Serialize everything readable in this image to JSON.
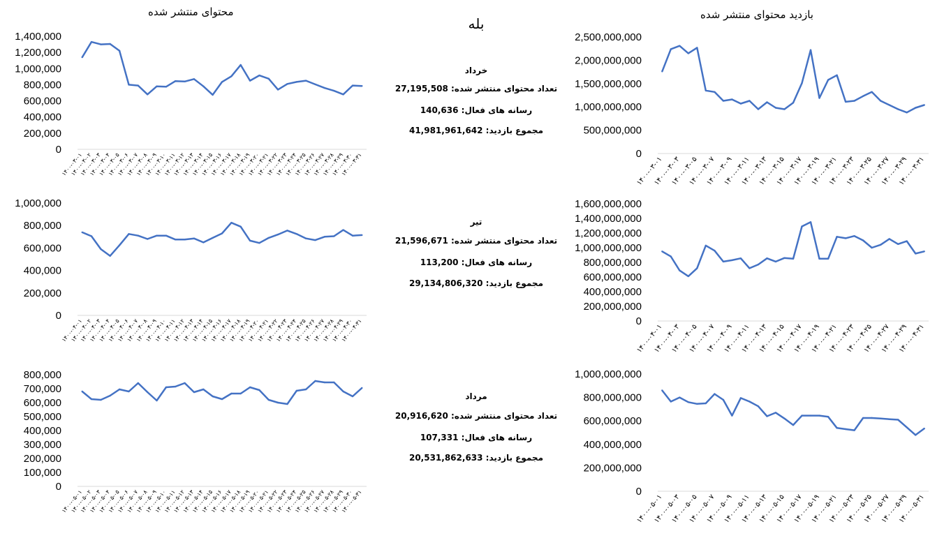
{
  "center": {
    "title": "بله",
    "months": [
      {
        "name": "خرداد",
        "published_label": "تعداد محتوای منتشر شده: 27,195,508",
        "active_label": "رسانه های فعال: 140,636",
        "views_label": "مجموع بازدید: 41,981,961,642"
      },
      {
        "name": "تیر",
        "published_label": "تعداد محتوای منتشر شده: 21,596,671",
        "active_label": "رسانه های فعال: 113,200",
        "views_label": "مجموع بازدید: 29,134,806,320"
      },
      {
        "name": "مرداد",
        "published_label": "تعداد محتوای منتشر شده: 20,916,620",
        "active_label": "رسانه های فعال: 107,331",
        "views_label": "مجموع بازدید: 20,531,862,633"
      }
    ]
  },
  "headers": {
    "left": "محتوای منتشر شده",
    "right": "بازدید محتوای منتشر شده"
  },
  "colors": {
    "line": "#4472C4",
    "text": "#000000",
    "axis": "#d9d9d9"
  },
  "chart_data": [
    {
      "type": "line",
      "title": "محتوای منتشر شده",
      "ylim": [
        0,
        1400000
      ],
      "yticks": [
        "0",
        "200,000",
        "400,000",
        "600,000",
        "800,000",
        "1,000,000",
        "1,200,000",
        "1,400,000"
      ],
      "x": [
        "۱۴۰۰-۰۳-۰۱",
        "۱۴۰۰-۰۳-۰۲",
        "۱۴۰۰-۰۳-۰۳",
        "۱۴۰۰-۰۳-۰۴",
        "۱۴۰۰-۰۳-۰۵",
        "۱۴۰۰-۰۳-۰۶",
        "۱۴۰۰-۰۳-۰۷",
        "۱۴۰۰-۰۳-۰۸",
        "۱۴۰۰-۰۳-۰۹",
        "۱۴۰۰-۰۳-۱۰",
        "۱۴۰۰-۰۳-۱۱",
        "۱۴۰۰-۰۳-۱۲",
        "۱۴۰۰-۰۳-۱۳",
        "۱۴۰۰-۰۳-۱۴",
        "۱۴۰۰-۰۳-۱۵",
        "۱۴۰۰-۰۳-۱۶",
        "۱۴۰۰-۰۳-۱۷",
        "۱۴۰۰-۰۳-۱۸",
        "۱۴۰۰-۰۳-۱۹",
        "۱۴۰۰-۰۳-۲۰",
        "۱۴۰۰-۰۳-۲۱",
        "۱۴۰۰-۰۳-۲۲",
        "۱۴۰۰-۰۳-۲۳",
        "۱۴۰۰-۰۳-۲۴",
        "۱۴۰۰-۰۳-۲۵",
        "۱۴۰۰-۰۳-۲۶",
        "۱۴۰۰-۰۳-۲۷",
        "۱۴۰۰-۰۳-۲۸",
        "۱۴۰۰-۰۳-۲۹",
        "۱۴۰۰-۰۳-۳۰",
        "۱۴۰۰-۰۳-۳۱"
      ],
      "values": [
        1140000,
        1330000,
        1300000,
        1305000,
        1220000,
        800000,
        790000,
        680000,
        780000,
        775000,
        845000,
        840000,
        870000,
        780000,
        675000,
        835000,
        905000,
        1045000,
        850000,
        915000,
        875000,
        740000,
        810000,
        835000,
        850000,
        805000,
        760000,
        725000,
        680000,
        790000,
        785000
      ]
    },
    {
      "type": "line",
      "title": "بازدید محتوای منتشر شده",
      "ylim": [
        0,
        2500000000
      ],
      "yticks": [
        "0",
        "500,000,000",
        "1,000,000,000",
        "1,500,000,000",
        "2,000,000,000",
        "2,500,000,000"
      ],
      "x": [
        "۱۴۰۰-۰۳-۰۱",
        "۱۴۰۰-۰۳-۰۲",
        "۱۴۰۰-۰۳-۰۳",
        "۱۴۰۰-۰۳-۰۴",
        "۱۴۰۰-۰۳-۰۵",
        "۱۴۰۰-۰۳-۰۶",
        "۱۴۰۰-۰۳-۰۷",
        "۱۴۰۰-۰۳-۰۸",
        "۱۴۰۰-۰۳-۰۹",
        "۱۴۰۰-۰۳-۱۰",
        "۱۴۰۰-۰۳-۱۱",
        "۱۴۰۰-۰۳-۱۲",
        "۱۴۰۰-۰۳-۱۳",
        "۱۴۰۰-۰۳-۱۴",
        "۱۴۰۰-۰۳-۱۵",
        "۱۴۰۰-۰۳-۱۶",
        "۱۴۰۰-۰۳-۱۷",
        "۱۴۰۰-۰۳-۱۸",
        "۱۴۰۰-۰۳-۱۹",
        "۱۴۰۰-۰۳-۲۰",
        "۱۴۰۰-۰۳-۲۱",
        "۱۴۰۰-۰۳-۲۲",
        "۱۴۰۰-۰۳-۲۳",
        "۱۴۰۰-۰۳-۲۴",
        "۱۴۰۰-۰۳-۲۵",
        "۱۴۰۰-۰۳-۲۶",
        "۱۴۰۰-۰۳-۲۷",
        "۱۴۰۰-۰۳-۲۸",
        "۱۴۰۰-۰۳-۲۹",
        "۱۴۰۰-۰۳-۳۰",
        "۱۴۰۰-۰۳-۳۱"
      ],
      "xticks": [
        "۱۴۰۰-۰۳-۰۱",
        "۱۴۰۰-۰۳-۰۳",
        "۱۴۰۰-۰۳-۰۵",
        "۱۴۰۰-۰۳-۰۷",
        "۱۴۰۰-۰۳-۰۹",
        "۱۴۰۰-۰۳-۱۱",
        "۱۴۰۰-۰۳-۱۳",
        "۱۴۰۰-۰۳-۱۵",
        "۱۴۰۰-۰۳-۱۷",
        "۱۴۰۰-۰۳-۱۹",
        "۱۴۰۰-۰۳-۲۱",
        "۱۴۰۰-۰۳-۲۳",
        "۱۴۰۰-۰۳-۲۵",
        "۱۴۰۰-۰۳-۲۷",
        "۱۴۰۰-۰۳-۲۹",
        "۱۴۰۰-۰۳-۳۱"
      ],
      "values": [
        1760000000,
        2240000000,
        2310000000,
        2150000000,
        2270000000,
        1350000000,
        1320000000,
        1130000000,
        1160000000,
        1070000000,
        1130000000,
        950000000,
        1100000000,
        980000000,
        950000000,
        1090000000,
        1510000000,
        2220000000,
        1190000000,
        1580000000,
        1680000000,
        1110000000,
        1130000000,
        1230000000,
        1320000000,
        1130000000,
        1040000000,
        950000000,
        880000000,
        980000000,
        1040000000
      ]
    },
    {
      "type": "line",
      "ylim": [
        0,
        1000000
      ],
      "yticks": [
        "0",
        "200,000",
        "400,000",
        "600,000",
        "800,000",
        "1,000,000"
      ],
      "x": [
        "۱۴۰۰-۰۴-۰۱",
        "۱۴۰۰-۰۴-۰۲",
        "۱۴۰۰-۰۴-۰۳",
        "۱۴۰۰-۰۴-۰۴",
        "۱۴۰۰-۰۴-۰۵",
        "۱۴۰۰-۰۴-۰۶",
        "۱۴۰۰-۰۴-۰۷",
        "۱۴۰۰-۰۴-۰۸",
        "۱۴۰۰-۰۴-۰۹",
        "۱۴۰۰-۰۴-۱۰",
        "۱۴۰۰-۰۴-۱۱",
        "۱۴۰۰-۰۴-۱۲",
        "۱۴۰۰-۰۴-۱۳",
        "۱۴۰۰-۰۴-۱۴",
        "۱۴۰۰-۰۴-۱۵",
        "۱۴۰۰-۰۴-۱۶",
        "۱۴۰۰-۰۴-۱۷",
        "۱۴۰۰-۰۴-۱۸",
        "۱۴۰۰-۰۴-۱۹",
        "۱۴۰۰-۰۴-۲۰",
        "۱۴۰۰-۰۴-۲۱",
        "۱۴۰۰-۰۴-۲۲",
        "۱۴۰۰-۰۴-۲۳",
        "۱۴۰۰-۰۴-۲۴",
        "۱۴۰۰-۰۴-۲۵",
        "۱۴۰۰-۰۴-۲۶",
        "۱۴۰۰-۰۴-۲۷",
        "۱۴۰۰-۰۴-۲۸",
        "۱۴۰۰-۰۴-۲۹",
        "۱۴۰۰-۰۴-۳۰",
        "۱۴۰۰-۰۴-۳۱"
      ],
      "values": [
        740000,
        705000,
        590000,
        530000,
        625000,
        725000,
        710000,
        680000,
        710000,
        710000,
        675000,
        675000,
        685000,
        650000,
        690000,
        730000,
        825000,
        790000,
        665000,
        645000,
        690000,
        720000,
        755000,
        725000,
        685000,
        670000,
        700000,
        705000,
        760000,
        710000,
        715000
      ]
    },
    {
      "type": "line",
      "ylim": [
        0,
        1600000000
      ],
      "yticks": [
        "0",
        "200,000,000",
        "400,000,000",
        "600,000,000",
        "800,000,000",
        "1,000,000,000",
        "1,200,000,000",
        "1,400,000,000",
        "1,600,000,000"
      ],
      "x": [
        "۱۴۰۰-۰۴-۰۱",
        "۱۴۰۰-۰۴-۰۲",
        "۱۴۰۰-۰۴-۰۳",
        "۱۴۰۰-۰۴-۰۴",
        "۱۴۰۰-۰۴-۰۵",
        "۱۴۰۰-۰۴-۰۶",
        "۱۴۰۰-۰۴-۰۷",
        "۱۴۰۰-۰۴-۰۸",
        "۱۴۰۰-۰۴-۰۹",
        "۱۴۰۰-۰۴-۱۰",
        "۱۴۰۰-۰۴-۱۱",
        "۱۴۰۰-۰۴-۱۲",
        "۱۴۰۰-۰۴-۱۳",
        "۱۴۰۰-۰۴-۱۴",
        "۱۴۰۰-۰۴-۱۵",
        "۱۴۰۰-۰۴-۱۶",
        "۱۴۰۰-۰۴-۱۷",
        "۱۴۰۰-۰۴-۱۸",
        "۱۴۰۰-۰۴-۱۹",
        "۱۴۰۰-۰۴-۲۰",
        "۱۴۰۰-۰۴-۲۱",
        "۱۴۰۰-۰۴-۲۲",
        "۱۴۰۰-۰۴-۲۳",
        "۱۴۰۰-۰۴-۲۴",
        "۱۴۰۰-۰۴-۲۵",
        "۱۴۰۰-۰۴-۲۶",
        "۱۴۰۰-۰۴-۲۷",
        "۱۴۰۰-۰۴-۲۸",
        "۱۴۰۰-۰۴-۲۹",
        "۱۴۰۰-۰۴-۳۰",
        "۱۴۰۰-۰۴-۳۱"
      ],
      "xticks": [
        "۱۴۰۰-۰۴-۰۱",
        "۱۴۰۰-۰۴-۰۳",
        "۱۴۰۰-۰۴-۰۵",
        "۱۴۰۰-۰۴-۰۷",
        "۱۴۰۰-۰۴-۰۹",
        "۱۴۰۰-۰۴-۱۱",
        "۱۴۰۰-۰۴-۱۳",
        "۱۴۰۰-۰۴-۱۵",
        "۱۴۰۰-۰۴-۱۷",
        "۱۴۰۰-۰۴-۱۹",
        "۱۴۰۰-۰۴-۲۱",
        "۱۴۰۰-۰۴-۲۳",
        "۱۴۰۰-۰۴-۲۵",
        "۱۴۰۰-۰۴-۲۷",
        "۱۴۰۰-۰۴-۲۹",
        "۱۴۰۰-۰۴-۳۱"
      ],
      "values": [
        950000000,
        880000000,
        690000000,
        610000000,
        720000000,
        1030000000,
        960000000,
        810000000,
        830000000,
        855000000,
        720000000,
        770000000,
        855000000,
        810000000,
        860000000,
        850000000,
        1290000000,
        1350000000,
        850000000,
        850000000,
        1150000000,
        1130000000,
        1160000000,
        1100000000,
        1000000000,
        1040000000,
        1120000000,
        1050000000,
        1090000000,
        920000000,
        950000000
      ]
    },
    {
      "type": "line",
      "ylim": [
        0,
        800000
      ],
      "yticks": [
        "0",
        "100,000",
        "200,000",
        "300,000",
        "400,000",
        "500,000",
        "600,000",
        "700,000",
        "800,000"
      ],
      "x": [
        "۱۴۰۰-۰۵-۰۱",
        "۱۴۰۰-۰۵-۰۲",
        "۱۴۰۰-۰۵-۰۳",
        "۱۴۰۰-۰۵-۰۴",
        "۱۴۰۰-۰۵-۰۵",
        "۱۴۰۰-۰۵-۰۶",
        "۱۴۰۰-۰۵-۰۷",
        "۱۴۰۰-۰۵-۰۸",
        "۱۴۰۰-۰۵-۰۹",
        "۱۴۰۰-۰۵-۱۰",
        "۱۴۰۰-۰۵-۱۱",
        "۱۴۰۰-۰۵-۱۲",
        "۱۴۰۰-۰۵-۱۳",
        "۱۴۰۰-۰۵-۱۴",
        "۱۴۰۰-۰۵-۱۵",
        "۱۴۰۰-۰۵-۱۶",
        "۱۴۰۰-۰۵-۱۷",
        "۱۴۰۰-۰۵-۱۸",
        "۱۴۰۰-۰۵-۱۹",
        "۱۴۰۰-۰۵-۲۰",
        "۱۴۰۰-۰۵-۲۱",
        "۱۴۰۰-۰۵-۲۲",
        "۱۴۰۰-۰۵-۲۳",
        "۱۴۰۰-۰۵-۲۴",
        "۱۴۰۰-۰۵-۲۵",
        "۱۴۰۰-۰۵-۲۶",
        "۱۴۰۰-۰۵-۲۷",
        "۱۴۰۰-۰۵-۲۸",
        "۱۴۰۰-۰۵-۲۹",
        "۱۴۰۰-۰۵-۳۰",
        "۱۴۰۰-۰۵-۳۱"
      ],
      "values": [
        680000,
        625000,
        620000,
        650000,
        695000,
        680000,
        740000,
        675000,
        615000,
        710000,
        715000,
        740000,
        675000,
        695000,
        645000,
        625000,
        665000,
        665000,
        710000,
        690000,
        620000,
        600000,
        590000,
        685000,
        695000,
        755000,
        745000,
        745000,
        680000,
        645000,
        705000
      ]
    },
    {
      "type": "line",
      "ylim": [
        0,
        1000000000
      ],
      "yticks": [
        "0",
        "200,000,000",
        "400,000,000",
        "600,000,000",
        "800,000,000",
        "1,000,000,000"
      ],
      "x": [
        "۱۴۰۰-۰۵-۰۱",
        "۱۴۰۰-۰۵-۰۲",
        "۱۴۰۰-۰۵-۰۳",
        "۱۴۰۰-۰۵-۰۴",
        "۱۴۰۰-۰۵-۰۵",
        "۱۴۰۰-۰۵-۰۶",
        "۱۴۰۰-۰۵-۰۷",
        "۱۴۰۰-۰۵-۰۸",
        "۱۴۰۰-۰۵-۰۹",
        "۱۴۰۰-۰۵-۱۰",
        "۱۴۰۰-۰۵-۱۱",
        "۱۴۰۰-۰۵-۱۲",
        "۱۴۰۰-۰۵-۱۳",
        "۱۴۰۰-۰۵-۱۴",
        "۱۴۰۰-۰۵-۱۵",
        "۱۴۰۰-۰۵-۱۶",
        "۱۴۰۰-۰۵-۱۷",
        "۱۴۰۰-۰۵-۱۸",
        "۱۴۰۰-۰۵-۱۹",
        "۱۴۰۰-۰۵-۲۰",
        "۱۴۰۰-۰۵-۲۱",
        "۱۴۰۰-۰۵-۲۲",
        "۱۴۰۰-۰۵-۲۳",
        "۱۴۰۰-۰۵-۲۴",
        "۱۴۰۰-۰۵-۲۵",
        "۱۴۰۰-۰۵-۲۶",
        "۱۴۰۰-۰۵-۲۷",
        "۱۴۰۰-۰۵-۲۸",
        "۱۴۰۰-۰۵-۲۹",
        "۱۴۰۰-۰۵-۳۰",
        "۱۴۰۰-۰۵-۳۱"
      ],
      "xticks": [
        "۱۴۰۰-۰۵-۰۱",
        "۱۴۰۰-۰۵-۰۳",
        "۱۴۰۰-۰۵-۰۵",
        "۱۴۰۰-۰۵-۰۷",
        "۱۴۰۰-۰۵-۰۹",
        "۱۴۰۰-۰۵-۱۱",
        "۱۴۰۰-۰۵-۱۳",
        "۱۴۰۰-۰۵-۱۵",
        "۱۴۰۰-۰۵-۱۷",
        "۱۴۰۰-۰۵-۱۹",
        "۱۴۰۰-۰۵-۲۱",
        "۱۴۰۰-۰۵-۲۳",
        "۱۴۰۰-۰۵-۲۵",
        "۱۴۰۰-۰۵-۲۷",
        "۱۴۰۰-۰۵-۲۹",
        "۱۴۰۰-۰۵-۳۱"
      ],
      "values": [
        860000000,
        765000000,
        800000000,
        760000000,
        745000000,
        750000000,
        830000000,
        780000000,
        645000000,
        795000000,
        765000000,
        725000000,
        640000000,
        670000000,
        620000000,
        565000000,
        645000000,
        645000000,
        645000000,
        635000000,
        540000000,
        530000000,
        520000000,
        625000000,
        625000000,
        620000000,
        615000000,
        610000000,
        545000000,
        480000000,
        535000000
      ]
    }
  ]
}
